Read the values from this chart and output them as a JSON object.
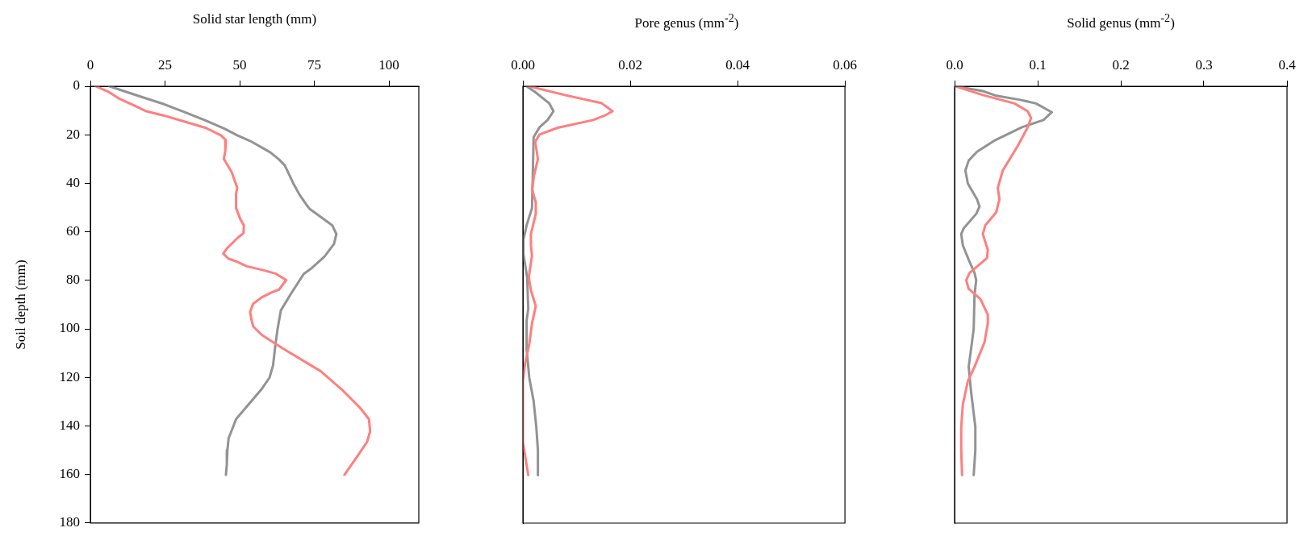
{
  "chart_data": [
    {
      "type": "line",
      "xlabel": "Solid star length (mm)",
      "ylabel": "Soil depth (mm)",
      "xlim": [
        0,
        110
      ],
      "xticks": [
        0,
        25,
        50,
        75,
        100
      ],
      "ylim": [
        180,
        0
      ],
      "yticks": [
        0,
        20,
        40,
        60,
        80,
        100,
        120,
        140,
        160,
        180
      ],
      "grid": false,
      "legend": false,
      "marker": "none",
      "line_style": "solid",
      "series": [
        {
          "color": "#ff7f7f",
          "x": [
            1.8,
            6.2,
            9.8,
            14.1,
            18.5,
            24.7,
            31.9,
            38.7,
            43.7,
            45.4,
            45.2,
            44.7,
            47.3,
            49.2,
            48.8,
            48.8,
            50.2,
            51.4,
            51.3,
            49.5,
            45.9,
            44.5,
            46.3,
            49.2,
            52.4,
            57.9,
            62.2,
            65.6,
            63.2,
            60.8,
            57.4,
            54.5,
            53.5,
            54.0,
            54.5,
            57.4,
            64.1,
            73.8,
            77.1,
            84.3,
            90.3,
            93.3,
            93.7,
            92.7,
            89.6,
            85.1
          ],
          "values": [
            0,
            2.4,
            5.2,
            7.6,
            10.2,
            12.1,
            14.7,
            17.2,
            20.2,
            22.2,
            26.6,
            30,
            35.3,
            41.9,
            44.2,
            50.2,
            54.7,
            57.3,
            60.6,
            62.3,
            66.6,
            69,
            71.1,
            72.4,
            74.2,
            75.8,
            77.3,
            79.9,
            83.8,
            84.9,
            87,
            89.7,
            93,
            96.5,
            98.9,
            102.5,
            107.8,
            115,
            117.4,
            125.1,
            132.5,
            137.2,
            142.3,
            146.5,
            152.2,
            160.2
          ]
        },
        {
          "color": "#939393",
          "x": [
            6.4,
            16.1,
            24.7,
            31.4,
            38.2,
            44.9,
            49.2,
            53.6,
            60.3,
            63.2,
            65.1,
            68.0,
            70.1,
            71.8,
            73.3,
            81.0,
            82.4,
            81.6,
            78.4,
            74.2,
            71.5,
            67.0,
            63.8,
            62.7,
            61.9,
            61.2,
            60.0,
            57.2,
            53.1,
            48.8,
            46.3,
            45.9,
            45.7,
            45.4
          ],
          "values": [
            0,
            4,
            7.4,
            10.6,
            13.9,
            17.5,
            20.2,
            22.6,
            27.3,
            30.2,
            32.6,
            40.1,
            44.8,
            47.8,
            50.4,
            57.3,
            60.9,
            65,
            70.2,
            74.9,
            77.3,
            85.9,
            92.4,
            100.1,
            107.3,
            115,
            120.1,
            125.1,
            131,
            137.2,
            145.1,
            150,
            155.9,
            160.2
          ]
        }
      ]
    },
    {
      "type": "line",
      "xlabel": "Pore genus (mm$^{-2}$)",
      "xlim": [
        0,
        0.06
      ],
      "xticks": [
        {
          "value": 0,
          "label": "0.00"
        },
        {
          "value": 0.02,
          "label": "0.02"
        },
        {
          "value": 0.04,
          "label": "0.04"
        },
        {
          "value": 0.06,
          "label": "0.06"
        }
      ],
      "ylim": [
        180,
        0
      ],
      "tick_labels": "x",
      "grid": false,
      "legend": false,
      "marker": "none",
      "line_style": "solid",
      "series": [
        {
          "color": "#ff7f7f",
          "x": [
            0.0012,
            0.0078,
            0.0147,
            0.0167,
            0.0155,
            0.0131,
            0.0065,
            0.0031,
            0.0023,
            0.0028,
            0.0021,
            0.0017,
            0.0024,
            0.0024,
            0.0015,
            0.0015,
            0.0017,
            0.0011,
            0.0015,
            0.0024,
            0.0017,
            0.0012,
            0.0004,
            0,
            0,
            0.001
          ],
          "values": [
            0,
            3.6,
            7,
            10.3,
            11.8,
            13.9,
            17.1,
            19.9,
            22.8,
            30,
            36.5,
            42.4,
            47.8,
            52.6,
            60.9,
            65.6,
            69.8,
            78.7,
            84.1,
            90.6,
            97.7,
            106.1,
            114.4,
            121.5,
            146.5,
            160.2
          ]
        },
        {
          "color": "#939393",
          "x": [
            0.0007,
            0.0023,
            0.0049,
            0.0057,
            0.0046,
            0.0031,
            0.002,
            0.0019,
            0.0017,
            0.0007,
            0.0001,
            0.0001,
            0.0008,
            0.001,
            0.0007,
            0.0007,
            0.0012,
            0.002,
            0.0025,
            0.0028,
            0.0028
          ],
          "values": [
            0,
            2.4,
            7,
            10.3,
            13.9,
            16.9,
            21,
            31.2,
            50.2,
            57.3,
            63.2,
            69.2,
            78.7,
            91.8,
            96.5,
            108.4,
            120.2,
            129.7,
            140.4,
            149.9,
            160.2
          ]
        }
      ]
    },
    {
      "type": "line",
      "xlabel": "Solid genus (mm$^{-2}$)",
      "xlim": [
        0,
        0.4
      ],
      "xticks": [
        {
          "value": 0,
          "label": "0.0"
        },
        {
          "value": 0.1,
          "label": "0.1"
        },
        {
          "value": 0.2,
          "label": "0.2"
        },
        {
          "value": 0.3,
          "label": "0.3"
        },
        {
          "value": 0.4,
          "label": "0.4"
        }
      ],
      "ylim": [
        180,
        0
      ],
      "tick_labels": "x",
      "grid": false,
      "legend": false,
      "marker": "none",
      "line_style": "solid",
      "series": [
        {
          "color": "#ff7f7f",
          "x": [
            0.001,
            0.034,
            0.072,
            0.088,
            0.092,
            0.088,
            0.076,
            0.058,
            0.052,
            0.054,
            0.05,
            0.037,
            0.034,
            0.04,
            0.039,
            0.018,
            0.014,
            0.017,
            0.031,
            0.04,
            0.04,
            0.036,
            0.024,
            0.016,
            0.01,
            0.008,
            0.008,
            0.009
          ],
          "values": [
            0,
            3.6,
            7.1,
            10.3,
            13.1,
            16.9,
            24.6,
            34.7,
            41.9,
            46.6,
            52,
            57.3,
            60.9,
            67.4,
            70.8,
            76.9,
            79.9,
            83.5,
            87.6,
            94.1,
            97.7,
            105.5,
            115.6,
            121.5,
            131,
            140.4,
            149.9,
            160.2
          ]
        },
        {
          "color": "#939393",
          "x": [
            0.001,
            0.034,
            0.049,
            0.079,
            0.098,
            0.117,
            0.107,
            0.081,
            0.049,
            0.027,
            0.017,
            0.013,
            0.016,
            0.027,
            0.03,
            0.026,
            0.011,
            0.008,
            0.01,
            0.017,
            0.024,
            0.026,
            0.024,
            0.023,
            0.017,
            0.02,
            0.025,
            0.025,
            0.023
          ],
          "values": [
            0,
            2,
            3.8,
            5.6,
            7.1,
            10.7,
            13.9,
            16.9,
            22.2,
            27,
            30.6,
            34.7,
            40.1,
            46.6,
            49.6,
            52.6,
            58.5,
            60.9,
            65.6,
            71.5,
            76.9,
            79.9,
            85.9,
            100.1,
            115.6,
            126.3,
            140.4,
            149.9,
            160.2
          ]
        }
      ]
    }
  ]
}
